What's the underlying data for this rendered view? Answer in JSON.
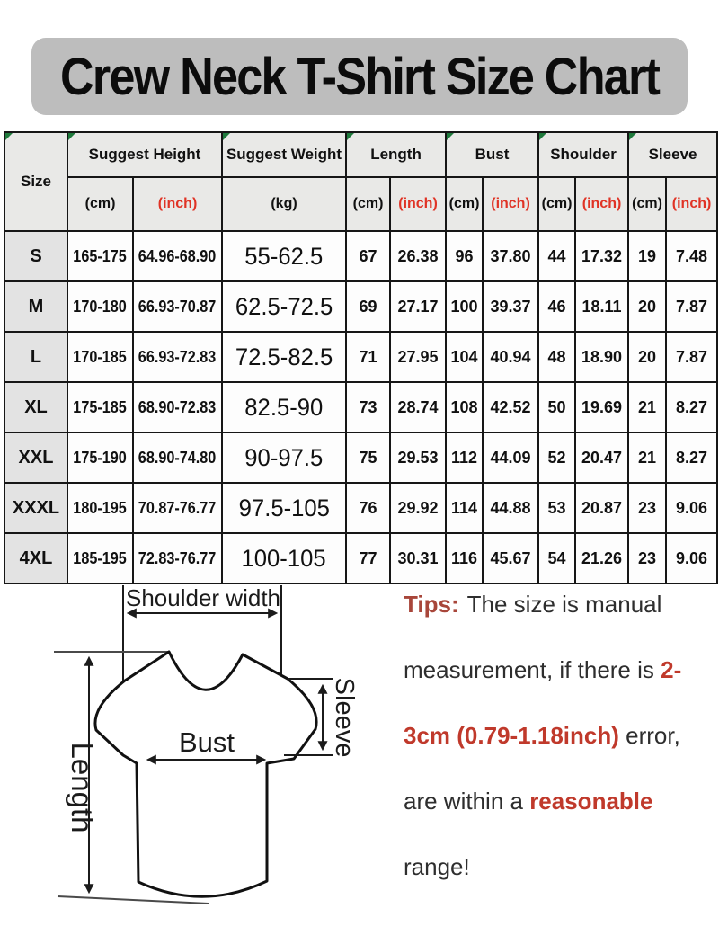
{
  "title": "Crew Neck T-Shirt Size Chart",
  "table": {
    "header": {
      "size": "Size",
      "suggest_height": "Suggest Height",
      "suggest_weight": "Suggest Weight",
      "length": "Length",
      "bust": "Bust",
      "shoulder": "Shoulder",
      "sleeve": "Sleeve"
    },
    "units": {
      "cm": "(cm)",
      "inch": "(inch)",
      "kg": "(kg)"
    },
    "rows": [
      {
        "size": "S",
        "height_cm": "165-175",
        "height_inch": "64.96-68.90",
        "weight_kg": "55-62.5",
        "length_cm": "67",
        "length_inch": "26.38",
        "bust_cm": "96",
        "bust_inch": "37.80",
        "shoulder_cm": "44",
        "shoulder_inch": "17.32",
        "sleeve_cm": "19",
        "sleeve_inch": "7.48"
      },
      {
        "size": "M",
        "height_cm": "170-180",
        "height_inch": "66.93-70.87",
        "weight_kg": "62.5-72.5",
        "length_cm": "69",
        "length_inch": "27.17",
        "bust_cm": "100",
        "bust_inch": "39.37",
        "shoulder_cm": "46",
        "shoulder_inch": "18.11",
        "sleeve_cm": "20",
        "sleeve_inch": "7.87"
      },
      {
        "size": "L",
        "height_cm": "170-185",
        "height_inch": "66.93-72.83",
        "weight_kg": "72.5-82.5",
        "length_cm": "71",
        "length_inch": "27.95",
        "bust_cm": "104",
        "bust_inch": "40.94",
        "shoulder_cm": "48",
        "shoulder_inch": "18.90",
        "sleeve_cm": "20",
        "sleeve_inch": "7.87"
      },
      {
        "size": "XL",
        "height_cm": "175-185",
        "height_inch": "68.90-72.83",
        "weight_kg": "82.5-90",
        "length_cm": "73",
        "length_inch": "28.74",
        "bust_cm": "108",
        "bust_inch": "42.52",
        "shoulder_cm": "50",
        "shoulder_inch": "19.69",
        "sleeve_cm": "21",
        "sleeve_inch": "8.27"
      },
      {
        "size": "XXL",
        "height_cm": "175-190",
        "height_inch": "68.90-74.80",
        "weight_kg": "90-97.5",
        "length_cm": "75",
        "length_inch": "29.53",
        "bust_cm": "112",
        "bust_inch": "44.09",
        "shoulder_cm": "52",
        "shoulder_inch": "20.47",
        "sleeve_cm": "21",
        "sleeve_inch": "8.27"
      },
      {
        "size": "XXXL",
        "height_cm": "180-195",
        "height_inch": "70.87-76.77",
        "weight_kg": "97.5-105",
        "length_cm": "76",
        "length_inch": "29.92",
        "bust_cm": "114",
        "bust_inch": "44.88",
        "shoulder_cm": "53",
        "shoulder_inch": "20.87",
        "sleeve_cm": "23",
        "sleeve_inch": "9.06"
      },
      {
        "size": "4XL",
        "height_cm": "185-195",
        "height_inch": "72.83-76.77",
        "weight_kg": "100-105",
        "length_cm": "77",
        "length_inch": "30.31",
        "bust_cm": "116",
        "bust_inch": "45.67",
        "shoulder_cm": "54",
        "shoulder_inch": "21.26",
        "sleeve_cm": "23",
        "sleeve_inch": "9.06"
      }
    ]
  },
  "diagram": {
    "shoulder_width_label": "Shoulder width",
    "bust_label": "Bust",
    "length_label": "Length",
    "sleeve_label": "Sleeve"
  },
  "tips": {
    "label": "Tips:",
    "line1_rest": "The size is manual",
    "line2_black": "measurement, if there is ",
    "line2_red": "2-",
    "line3_red": "3cm (0.79-1.18inch)",
    "line3_rest": " error,",
    "line4_black": "are within a ",
    "line4_red": "reasonable",
    "line5": "range!"
  },
  "colors": {
    "banner_gray": "#bdbdbd",
    "header_gray": "#e9e9e7",
    "size_col_gray": "#e3e3e3",
    "unit_inch_red": "#e03325",
    "tips_label_red": "#a8463a",
    "tips_highlight_red": "#c0392b",
    "excel_marker_green": "#1f7a3c",
    "border_black": "#161616"
  }
}
